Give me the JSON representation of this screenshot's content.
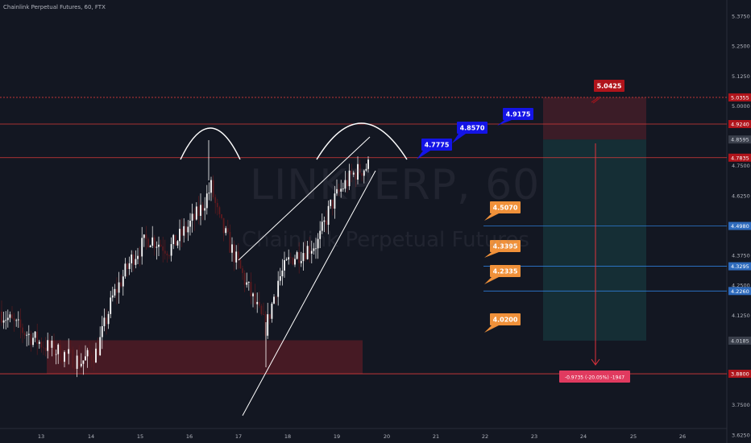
{
  "header": {
    "title": "Chainlink Perpetual Futures, 60, FTX"
  },
  "watermark": {
    "symbol": "LINKPERP, 60",
    "name": "Chainlink Perpetual Futures"
  },
  "colors": {
    "bg": "#131722",
    "up": "#ffffff",
    "down": "#5d1a1f",
    "red_line": "#d93a3a",
    "blue_line": "#2e7bd6",
    "orange_tag": "#f0913a",
    "blue_tag": "#1414e6",
    "target_red": "#b0141b",
    "pnl": "#e03a5f"
  },
  "chart_data": {
    "type": "candlestick",
    "symbol": "LINKPERP",
    "interval": "60",
    "exchange": "FTX",
    "xlabels": [
      "13",
      "14",
      "15",
      "16",
      "17",
      "18",
      "19",
      "20",
      "21",
      "22",
      "23",
      "24",
      "25",
      "26"
    ],
    "ylabels": [
      "5.3750",
      "5.2500",
      "5.1250",
      "5.0000",
      "4.7500",
      "4.6250",
      "4.3750",
      "4.2500",
      "4.1250",
      "3.7500",
      "3.6250"
    ],
    "ylim": [
      3.61,
      5.46
    ],
    "price_levels": [
      {
        "label": "5.0355",
        "value": 5.0355,
        "color": "red"
      },
      {
        "label": "4.9240",
        "value": 4.924,
        "color": "red"
      },
      {
        "label": "4.8595",
        "value": 4.8595,
        "color": "grey"
      },
      {
        "label": "4.7835",
        "value": 4.7835,
        "color": "red"
      },
      {
        "label": "4.4980",
        "value": 4.498,
        "color": "blue"
      },
      {
        "label": "4.3295",
        "value": 4.3295,
        "color": "blue"
      },
      {
        "label": "4.2260",
        "value": 4.226,
        "color": "blue"
      },
      {
        "label": "4.0185",
        "value": 4.0185,
        "color": "grey"
      },
      {
        "label": "3.8800",
        "value": 3.88,
        "color": "red"
      }
    ],
    "tags": [
      {
        "label": "4.7775",
        "style": "blue"
      },
      {
        "label": "4.8570",
        "style": "blue"
      },
      {
        "label": "4.9175",
        "style": "blue"
      },
      {
        "label": "5.0425",
        "style": "red"
      },
      {
        "label": "4.5070",
        "style": "orange"
      },
      {
        "label": "4.3395",
        "style": "orange"
      },
      {
        "label": "4.2335",
        "style": "orange"
      },
      {
        "label": "4.0200",
        "style": "orange"
      }
    ],
    "measurement": {
      "label": "-0.9735 (-20.05%) -1947"
    },
    "short_position": {
      "entry": 4.8595,
      "stop": 5.0355,
      "target": 4.0185
    },
    "support_zone": {
      "top": 4.02,
      "bottom": 3.88
    }
  }
}
